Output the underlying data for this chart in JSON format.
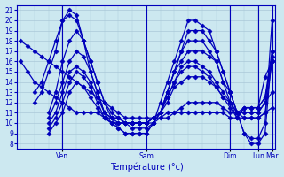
{
  "xlabel": "Température (°c)",
  "ylim": [
    7.5,
    21.5
  ],
  "yticks": [
    8,
    9,
    10,
    11,
    12,
    13,
    14,
    15,
    16,
    17,
    18,
    19,
    20,
    21
  ],
  "bg_color": "#cce8f0",
  "grid_color": "#aac8d8",
  "line_color": "#0000bb",
  "marker": "D",
  "marker_size": 2.5,
  "line_width": 0.9,
  "n_steps": 37,
  "xlim": [
    -0.5,
    36.5
  ],
  "day_tick_positions": [
    6,
    18,
    30,
    34,
    36
  ],
  "day_labels": [
    "Ven",
    "Sam",
    "Dim",
    "Lun",
    "Mar"
  ],
  "vline_positions": [
    6,
    18,
    30,
    34,
    36
  ],
  "series": [
    [
      0,
      18,
      1,
      17.5,
      2,
      17,
      3,
      16.5,
      4,
      16,
      5,
      15.5,
      6,
      15,
      7,
      14.5,
      8,
      14,
      9,
      13.5,
      10,
      13,
      11,
      12.5,
      12,
      12,
      13,
      11.5,
      14,
      11,
      15,
      10.5,
      16,
      10.5,
      17,
      10.5,
      18,
      10.5,
      19,
      10.5,
      20,
      10.5,
      21,
      10.5,
      22,
      11,
      23,
      11,
      24,
      11,
      25,
      11,
      26,
      11,
      27,
      11,
      28,
      11,
      29,
      11,
      30,
      10.5,
      31,
      10.5,
      32,
      10.5,
      33,
      10.5,
      34,
      10.5,
      35,
      11,
      36,
      11.5
    ],
    [
      0,
      16,
      1,
      15,
      2,
      14,
      3,
      13.5,
      4,
      13,
      5,
      12.5,
      6,
      12,
      7,
      11.5,
      8,
      11,
      9,
      11,
      10,
      11,
      11,
      11,
      12,
      10.5,
      13,
      10.5,
      14,
      10.5,
      15,
      10,
      16,
      10,
      17,
      10,
      18,
      10,
      19,
      10,
      20,
      10.5,
      21,
      11,
      22,
      11,
      23,
      11.5,
      24,
      12,
      25,
      12,
      26,
      12,
      27,
      12,
      28,
      12,
      29,
      11.5,
      30,
      11,
      31,
      11,
      32,
      11,
      33,
      11,
      34,
      11,
      35,
      12,
      36,
      13
    ],
    [
      2,
      13,
      3,
      14,
      4,
      16,
      5,
      18,
      6,
      20,
      7,
      20.5,
      8,
      20,
      9,
      18,
      10,
      16,
      11,
      14,
      12,
      12,
      13,
      10.5,
      14,
      9.5,
      15,
      9,
      16,
      9,
      17,
      9,
      18,
      9,
      19,
      10,
      20,
      11,
      21,
      13,
      22,
      15,
      23,
      17,
      24,
      19,
      25,
      19,
      26,
      19,
      27,
      18,
      28,
      17,
      29,
      15,
      30,
      13,
      31,
      11,
      32,
      9,
      33,
      8.5,
      34,
      8.5,
      35,
      10,
      36,
      20
    ],
    [
      2,
      12,
      3,
      13,
      4,
      15,
      5,
      17,
      6,
      20,
      7,
      21,
      8,
      20.5,
      9,
      18,
      10,
      15,
      11,
      13,
      12,
      11,
      13,
      10,
      14,
      9.5,
      15,
      9,
      16,
      9,
      17,
      9,
      18,
      9,
      19,
      10,
      20,
      12,
      21,
      14,
      22,
      16,
      23,
      18,
      24,
      20,
      25,
      20,
      26,
      19.5,
      27,
      19,
      28,
      17,
      29,
      15,
      30,
      13,
      31,
      11,
      32,
      9,
      33,
      8,
      34,
      8,
      35,
      9,
      36,
      17
    ],
    [
      4,
      11,
      5,
      13,
      6,
      16,
      7,
      18,
      8,
      19,
      9,
      18,
      10,
      16,
      11,
      14,
      12,
      12,
      13,
      11,
      14,
      10.5,
      15,
      10,
      16,
      9.5,
      17,
      9.5,
      18,
      9.5,
      19,
      10,
      20,
      11,
      21,
      13,
      22,
      15,
      23,
      17,
      24,
      18,
      25,
      18,
      26,
      18,
      27,
      17,
      28,
      16,
      29,
      14,
      30,
      12,
      31,
      11,
      32,
      10.5,
      33,
      10.5,
      34,
      10.5,
      35,
      11,
      36,
      16
    ],
    [
      4,
      10.5,
      5,
      12,
      6,
      14,
      7,
      16,
      8,
      17,
      9,
      16.5,
      10,
      15,
      11,
      13,
      12,
      11,
      13,
      10.5,
      14,
      10,
      15,
      10,
      16,
      10,
      17,
      10,
      18,
      10,
      19,
      10.5,
      20,
      11,
      21,
      13,
      22,
      15,
      23,
      16,
      24,
      17,
      25,
      17,
      26,
      17,
      27,
      16.5,
      28,
      16,
      29,
      14,
      30,
      13,
      31,
      11,
      32,
      11,
      33,
      11,
      34,
      11,
      35,
      12,
      36,
      16.5
    ],
    [
      4,
      10,
      5,
      11,
      6,
      13,
      7,
      15,
      8,
      15.5,
      9,
      15,
      10,
      14,
      11,
      12.5,
      12,
      11,
      13,
      10.5,
      14,
      10.5,
      15,
      10,
      16,
      10,
      17,
      10,
      18,
      10,
      19,
      10.5,
      20,
      11,
      21,
      12.5,
      22,
      14,
      23,
      15.5,
      24,
      16,
      25,
      16,
      26,
      15.5,
      27,
      15,
      28,
      14,
      29,
      13,
      30,
      12,
      31,
      11,
      32,
      11.5,
      33,
      11.5,
      34,
      11.5,
      35,
      12.5,
      36,
      17
    ],
    [
      4,
      9.5,
      5,
      10.5,
      6,
      12,
      7,
      14,
      8,
      15,
      9,
      14.5,
      10,
      13.5,
      11,
      12,
      12,
      10.5,
      13,
      10,
      14,
      10,
      15,
      10,
      16,
      10,
      17,
      10,
      18,
      10,
      19,
      10.5,
      20,
      11,
      21,
      12.5,
      22,
      14,
      23,
      15,
      24,
      15.5,
      25,
      15.5,
      26,
      15,
      27,
      14.5,
      28,
      13.5,
      29,
      12.5,
      30,
      12,
      31,
      10.5,
      32,
      11.5,
      33,
      11.5,
      34,
      11.5,
      35,
      12.5,
      36,
      16
    ],
    [
      4,
      9,
      5,
      10,
      6,
      11,
      7,
      13,
      8,
      14,
      9,
      13.5,
      10,
      12.5,
      11,
      11.5,
      12,
      10.5,
      13,
      10,
      14,
      10,
      15,
      10,
      16,
      10,
      17,
      10,
      18,
      10,
      19,
      10.5,
      20,
      11,
      21,
      12,
      22,
      13.5,
      23,
      14,
      24,
      14.5,
      25,
      14.5,
      26,
      14.5,
      27,
      14,
      28,
      13.5,
      29,
      12.5,
      30,
      11.5,
      31,
      10.5,
      32,
      11.5,
      33,
      11.5,
      34,
      11.5,
      35,
      14.5,
      36,
      16
    ]
  ]
}
